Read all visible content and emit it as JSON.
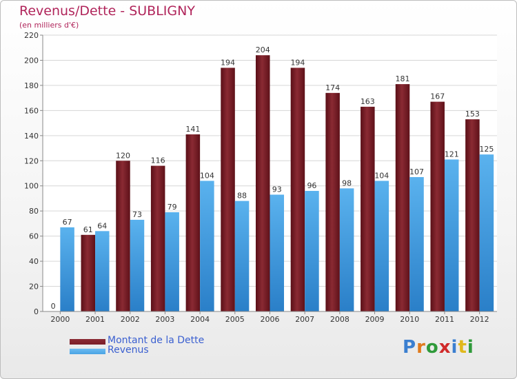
{
  "title": "Revenus/Dette - SUBLIGNY",
  "subtitle": "(en milliers d'€)",
  "logo_text": "Proxiti",
  "colors": {
    "dette": "#7b1e28",
    "revenus": "#4aa3e3",
    "title": "#b0245a",
    "legend_text": "#3a5fd0"
  },
  "chart_data": {
    "type": "bar",
    "categories": [
      "2000",
      "2001",
      "2002",
      "2003",
      "2004",
      "2005",
      "2006",
      "2007",
      "2008",
      "2009",
      "2010",
      "2011",
      "2012"
    ],
    "series": [
      {
        "name": "Montant de la Dette",
        "values": [
          0,
          61,
          120,
          116,
          141,
          194,
          204,
          194,
          174,
          163,
          181,
          167,
          153
        ]
      },
      {
        "name": "Revenus",
        "values": [
          67,
          64,
          73,
          79,
          104,
          88,
          93,
          96,
          98,
          104,
          107,
          121,
          125
        ]
      }
    ],
    "ylim": [
      0,
      220
    ],
    "yticks": [
      0,
      20,
      40,
      60,
      80,
      100,
      120,
      140,
      160,
      180,
      200,
      220
    ],
    "grid": true,
    "data_labels": true,
    "legend_position": "bottom-left"
  }
}
